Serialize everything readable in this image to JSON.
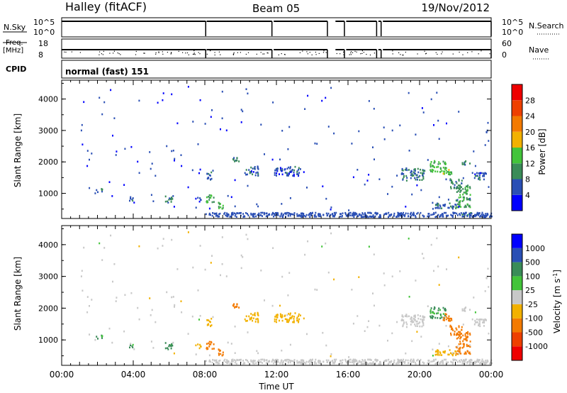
{
  "header": {
    "station": "Halley (fitACF)",
    "beam": "Beam 05",
    "date": "19/Nov/2012"
  },
  "colors": {
    "power": [
      "#0000ff",
      "#2a4fb5",
      "#3a8c58",
      "#43c43a",
      "#f2b100",
      "#f37a00",
      "#ee4000",
      "#ee0000"
    ],
    "velocity": [
      "#ee0000",
      "#ee4000",
      "#f37a00",
      "#f2b100",
      "#c8c8c8",
      "#43c43a",
      "#3a8c58",
      "#2a4fb5",
      "#0000ff"
    ]
  },
  "chart_data": [
    {
      "type": "line",
      "panel": "nsky-nsearch",
      "left_label": "N.Sky",
      "right_label": "N.Search",
      "left_ticks": [
        "10^5",
        "10^0"
      ],
      "right_ticks": [
        "10^5",
        "10^0"
      ],
      "xlim": [
        0,
        24
      ],
      "gaps_hours": [
        [
          8.0,
          8.05
        ],
        [
          11.75,
          11.85
        ],
        [
          14.85,
          15.3
        ],
        [
          15.8,
          15.9
        ],
        [
          17.6,
          17.7
        ],
        [
          17.85,
          17.95
        ]
      ]
    },
    {
      "type": "scatter",
      "panel": "freq-nave",
      "left_label": "Freq.",
      "left_unit": "[MHz]",
      "right_label": "Nave",
      "left_ticks": [
        "18",
        "8"
      ],
      "right_ticks": [
        "60",
        "0"
      ],
      "gaps_hours": [
        [
          8.0,
          8.05
        ],
        [
          11.75,
          11.85
        ],
        [
          14.85,
          15.3
        ],
        [
          15.8,
          15.9
        ],
        [
          17.6,
          17.7
        ],
        [
          17.85,
          17.95
        ]
      ]
    },
    {
      "type": "table",
      "panel": "cpid",
      "label": "CPID",
      "text": "normal (fast) 151"
    },
    {
      "type": "heatmap",
      "panel": "power",
      "ylabel": "Slant Range [km]",
      "yticks": [
        1000,
        2000,
        3000,
        4000
      ],
      "ylim": [
        200,
        4600
      ],
      "xlim": [
        0,
        24
      ],
      "colorbar_title": "Power [dB]",
      "colorbar_ticks": [
        "28",
        "24",
        "20",
        "16",
        "12",
        "8",
        "4"
      ],
      "scale": [
        0,
        32
      ]
    },
    {
      "type": "heatmap",
      "panel": "velocity",
      "ylabel": "Slant Range [km]",
      "yticks": [
        1000,
        2000,
        3000,
        4000
      ],
      "ylim": [
        200,
        4600
      ],
      "xlim": [
        0,
        24
      ],
      "xlabel": "Time UT",
      "xticks": [
        "00:00",
        "04:00",
        "08:00",
        "12:00",
        "16:00",
        "20:00",
        "00:00"
      ],
      "colorbar_title": "Velocity [m s",
      "colorbar_title_exp": "-1",
      "colorbar_title_close": "]",
      "colorbar_ticks": [
        "1000",
        "500",
        "100",
        "25",
        "-25",
        "-100",
        "-500",
        "-1000"
      ],
      "echo_patches": [
        {
          "t": 2.1,
          "r": 1080,
          "dt": 0.4,
          "dr": 120,
          "p": 9,
          "v": 110
        },
        {
          "t": 3.9,
          "r": 800,
          "dt": 0.4,
          "dr": 100,
          "p": 7,
          "v": 120
        },
        {
          "t": 6.0,
          "r": 800,
          "dt": 0.5,
          "dr": 200,
          "p": 7,
          "v": 110
        },
        {
          "t": 7.6,
          "r": 800,
          "dt": 0.3,
          "dr": 150,
          "p": 6,
          "v": -40
        },
        {
          "t": 8.3,
          "r": 820,
          "dt": 0.5,
          "dr": 250,
          "p": 12,
          "v": -150
        },
        {
          "t": 8.2,
          "r": 1500,
          "dt": 0.3,
          "dr": 350,
          "p": 6,
          "v": -60
        },
        {
          "t": 8.8,
          "r": 600,
          "dt": 0.4,
          "dr": 200,
          "p": 14,
          "v": -200
        },
        {
          "t": 9.7,
          "r": 2050,
          "dt": 0.4,
          "dr": 200,
          "p": 8,
          "v": -150
        },
        {
          "t": 10.6,
          "r": 1700,
          "dt": 0.8,
          "dr": 300,
          "p": 6,
          "v": -40
        },
        {
          "t": 12.6,
          "r": 1700,
          "dt": 1.5,
          "dr": 300,
          "p": 6,
          "v": -40
        },
        {
          "t": 19.6,
          "r": 1600,
          "dt": 1.3,
          "dr": 400,
          "p": 8,
          "v": 10
        },
        {
          "t": 21.0,
          "r": 1850,
          "dt": 0.9,
          "dr": 350,
          "p": 13,
          "v": 120
        },
        {
          "t": 21.5,
          "r": 1700,
          "dt": 0.5,
          "dr": 250,
          "p": 14,
          "v": -150
        },
        {
          "t": 22.4,
          "r": 900,
          "dt": 0.8,
          "dr": 700,
          "p": 11,
          "v": -300
        },
        {
          "t": 22.0,
          "r": 1300,
          "dt": 0.7,
          "dr": 300,
          "p": 9,
          "v": -150
        },
        {
          "t": 22.6,
          "r": 1950,
          "dt": 0.5,
          "dr": 150,
          "p": 9,
          "v": 15
        },
        {
          "t": 23.3,
          "r": 1550,
          "dt": 0.8,
          "dr": 250,
          "p": 7,
          "v": 10
        },
        {
          "t": 21.5,
          "r": 600,
          "dt": 1.3,
          "dr": 200,
          "p": 7,
          "v": -60
        },
        {
          "t": 22.8,
          "r": 320,
          "dt": 1.0,
          "dr": 100,
          "p": 10,
          "v": 10
        },
        {
          "t": 23.8,
          "r": 2950,
          "dt": 0.2,
          "dr": 100,
          "p": 5,
          "v": -20
        }
      ],
      "groundscatter_band": {
        "t0": 8.0,
        "t1": 24.0,
        "r0": 240,
        "r1": 380,
        "p": 6,
        "v": 0
      }
    }
  ]
}
